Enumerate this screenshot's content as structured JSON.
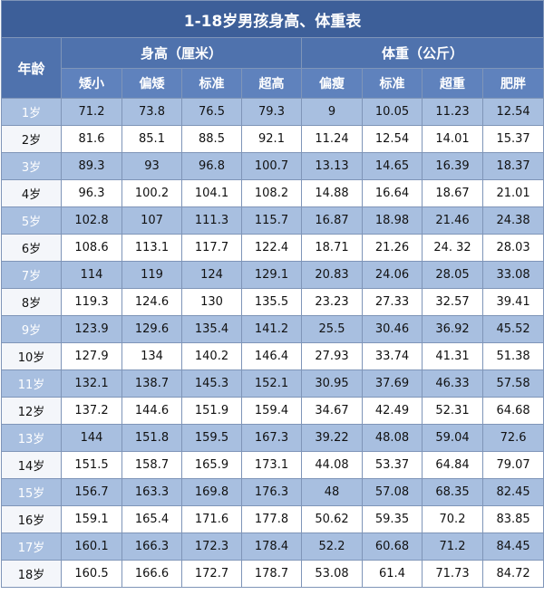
{
  "title": "1-18岁男孩身高、体重表",
  "age_header": "年龄",
  "height_header": "身高（厘米）",
  "weight_header": "体重（公斤）",
  "sub_headers": [
    "矮小",
    "偏矮",
    "标准",
    "超高",
    "偏瘦",
    "标准",
    "超重",
    "肥胖"
  ],
  "rows": [
    {
      "age": "1岁",
      "values": [
        "71.2",
        "73.8",
        "76.5",
        "79.3",
        "9",
        "10.05",
        "11.23",
        "12.54"
      ]
    },
    {
      "age": "2岁",
      "values": [
        "81.6",
        "85.1",
        "88.5",
        "92.1",
        "11.24",
        "12.54",
        "14.01",
        "15.37"
      ]
    },
    {
      "age": "3岁",
      "values": [
        "89.3",
        "93",
        "96.8",
        "100.7",
        "13.13",
        "14.65",
        "16.39",
        "18.37"
      ]
    },
    {
      "age": "4岁",
      "values": [
        "96.3",
        "100.2",
        "104.1",
        "108.2",
        "14.88",
        "16.64",
        "18.67",
        "21.01"
      ]
    },
    {
      "age": "5岁",
      "values": [
        "102.8",
        "107",
        "111.3",
        "115.7",
        "16.87",
        "18.98",
        "21.46",
        "24.38"
      ]
    },
    {
      "age": "6岁",
      "values": [
        "108.6",
        "113.1",
        "117.7",
        "122.4",
        "18.71",
        "21.26",
        "24. 32",
        "28.03"
      ]
    },
    {
      "age": "7岁",
      "values": [
        "114",
        "119",
        "124",
        "129.1",
        "20.83",
        "24.06",
        "28.05",
        "33.08"
      ]
    },
    {
      "age": "8岁",
      "values": [
        "119.3",
        "124.6",
        "130",
        "135.5",
        "23.23",
        "27.33",
        "32.57",
        "39.41"
      ]
    },
    {
      "age": "9岁",
      "values": [
        "123.9",
        "129.6",
        "135.4",
        "141.2",
        "25.5",
        "30.46",
        "36.92",
        "45.52"
      ]
    },
    {
      "age": "10岁",
      "values": [
        "127.9",
        "134",
        "140.2",
        "146.4",
        "27.93",
        "33.74",
        "41.31",
        "51.38"
      ]
    },
    {
      "age": "11岁",
      "values": [
        "132.1",
        "138.7",
        "145.3",
        "152.1",
        "30.95",
        "37.69",
        "46.33",
        "57.58"
      ]
    },
    {
      "age": "12岁",
      "values": [
        "137.2",
        "144.6",
        "151.9",
        "159.4",
        "34.67",
        "42.49",
        "52.31",
        "64.68"
      ]
    },
    {
      "age": "13岁",
      "values": [
        "144",
        "151.8",
        "159.5",
        "167.3",
        "39.22",
        "48.08",
        "59.04",
        "72.6"
      ]
    },
    {
      "age": "14岁",
      "values": [
        "151.5",
        "158.7",
        "165.9",
        "173.1",
        "44.08",
        "53.37",
        "64.84",
        "79.07"
      ]
    },
    {
      "age": "15岁",
      "values": [
        "156.7",
        "163.3",
        "169.8",
        "176.3",
        "48",
        "57.08",
        "68.35",
        "82.45"
      ]
    },
    {
      "age": "16岁",
      "values": [
        "159.1",
        "165.4",
        "171.6",
        "177.8",
        "50.62",
        "59.35",
        "70.2",
        "83.85"
      ]
    },
    {
      "age": "17岁",
      "values": [
        "160.1",
        "166.3",
        "172.3",
        "178.4",
        "52.2",
        "60.68",
        "71.2",
        "84.45"
      ]
    },
    {
      "age": "18岁",
      "values": [
        "160.5",
        "166.6",
        "172.7",
        "178.7",
        "53.08",
        "61.4",
        "71.73",
        "84.72"
      ]
    }
  ]
}
